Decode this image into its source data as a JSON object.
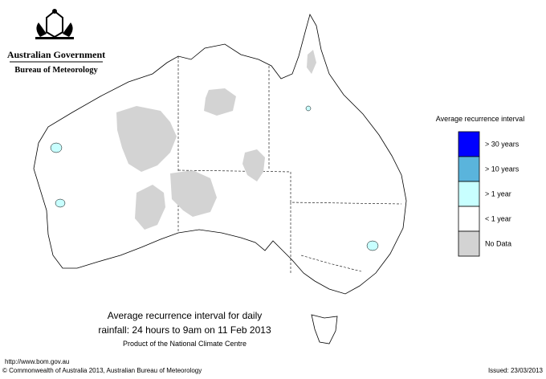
{
  "header": {
    "government": "Australian Government",
    "bureau": "Bureau of Meteorology"
  },
  "title": {
    "line1": "Average recurrence interval for daily",
    "line2": "rainfall: 24 hours to 9am on 11 Feb 2013",
    "product": "Product of the National Climate Centre"
  },
  "legend": {
    "title": "Average recurrence interval",
    "items": [
      {
        "label": "> 30 years",
        "color": "#0000ff"
      },
      {
        "label": "> 10 years",
        "color": "#5ab4dc"
      },
      {
        "label": "> 1 year",
        "color": "#c8ffff"
      },
      {
        "label": "< 1 year",
        "color": "#ffffff"
      },
      {
        "label": "No Data",
        "color": "#d3d3d3"
      }
    ]
  },
  "footer": {
    "url": "http://www.bom.gov.au",
    "copyright": "© Commonwealth of Australia 2013, Australian Bureau of Meteorology",
    "issued": "Issued: 23/03/2013"
  }
}
